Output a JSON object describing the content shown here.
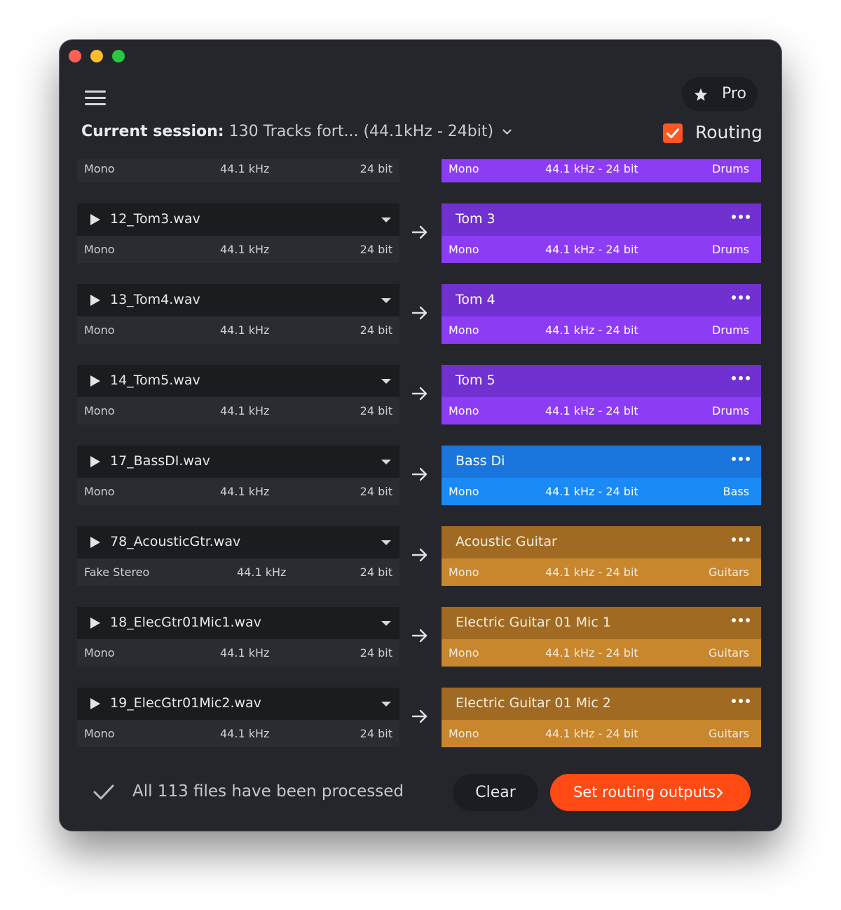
{
  "header": {
    "pro_label": "Pro",
    "session_label": "Current session:",
    "session_value": "130 Tracks fort... (44.1kHz - 24bit)",
    "routing_label": "Routing",
    "routing_checked": true
  },
  "colors": {
    "accent": "#ff4a14",
    "drums": "#8d3cf5",
    "bass": "#1a8af7",
    "guitars": "#c8862d"
  },
  "tracks": [
    {
      "file": "",
      "channels": "Mono",
      "rate": "44.1 kHz",
      "bits": "24 bit",
      "dest": "",
      "dest_channels": "Mono",
      "dest_format": "44.1 kHz - 24 bit",
      "group": "Drums"
    },
    {
      "file": "12_Tom3.wav",
      "channels": "Mono",
      "rate": "44.1 kHz",
      "bits": "24 bit",
      "dest": "Tom 3",
      "dest_channels": "Mono",
      "dest_format": "44.1 kHz - 24 bit",
      "group": "Drums"
    },
    {
      "file": "13_Tom4.wav",
      "channels": "Mono",
      "rate": "44.1 kHz",
      "bits": "24 bit",
      "dest": "Tom 4",
      "dest_channels": "Mono",
      "dest_format": "44.1 kHz - 24 bit",
      "group": "Drums"
    },
    {
      "file": "14_Tom5.wav",
      "channels": "Mono",
      "rate": "44.1 kHz",
      "bits": "24 bit",
      "dest": "Tom 5",
      "dest_channels": "Mono",
      "dest_format": "44.1 kHz - 24 bit",
      "group": "Drums"
    },
    {
      "file": "17_BassDI.wav",
      "channels": "Mono",
      "rate": "44.1 kHz",
      "bits": "24 bit",
      "dest": "Bass Di",
      "dest_channels": "Mono",
      "dest_format": "44.1 kHz - 24 bit",
      "group": "Bass"
    },
    {
      "file": "78_AcousticGtr.wav",
      "channels": "Fake Stereo",
      "rate": "44.1 kHz",
      "bits": "24 bit",
      "dest": "Acoustic Guitar",
      "dest_channels": "Mono",
      "dest_format": "44.1 kHz - 24 bit",
      "group": "Guitars"
    },
    {
      "file": "18_ElecGtr01Mic1.wav",
      "channels": "Mono",
      "rate": "44.1 kHz",
      "bits": "24 bit",
      "dest": "Electric Guitar 01 Mic 1",
      "dest_channels": "Mono",
      "dest_format": "44.1 kHz - 24 bit",
      "group": "Guitars"
    },
    {
      "file": "19_ElecGtr01Mic2.wav",
      "channels": "Mono",
      "rate": "44.1 kHz",
      "bits": "24 bit",
      "dest": "Electric Guitar 01 Mic 2",
      "dest_channels": "Mono",
      "dest_format": "44.1 kHz - 24 bit",
      "group": "Guitars"
    }
  ],
  "footer": {
    "status": "All 113 files have been processed",
    "clear_label": "Clear",
    "primary_label": "Set routing outputs"
  },
  "icons": {
    "menu": "hamburger-menu-icon",
    "pro": "star-icon",
    "session": "chevron-down-icon",
    "routing": "checkbox-checked-icon",
    "play": "play-icon",
    "select": "caret-down-icon",
    "route": "arrow-right-icon",
    "more": "more-dots-icon",
    "status": "checkmark-icon",
    "primary": "chevron-right-icon"
  }
}
